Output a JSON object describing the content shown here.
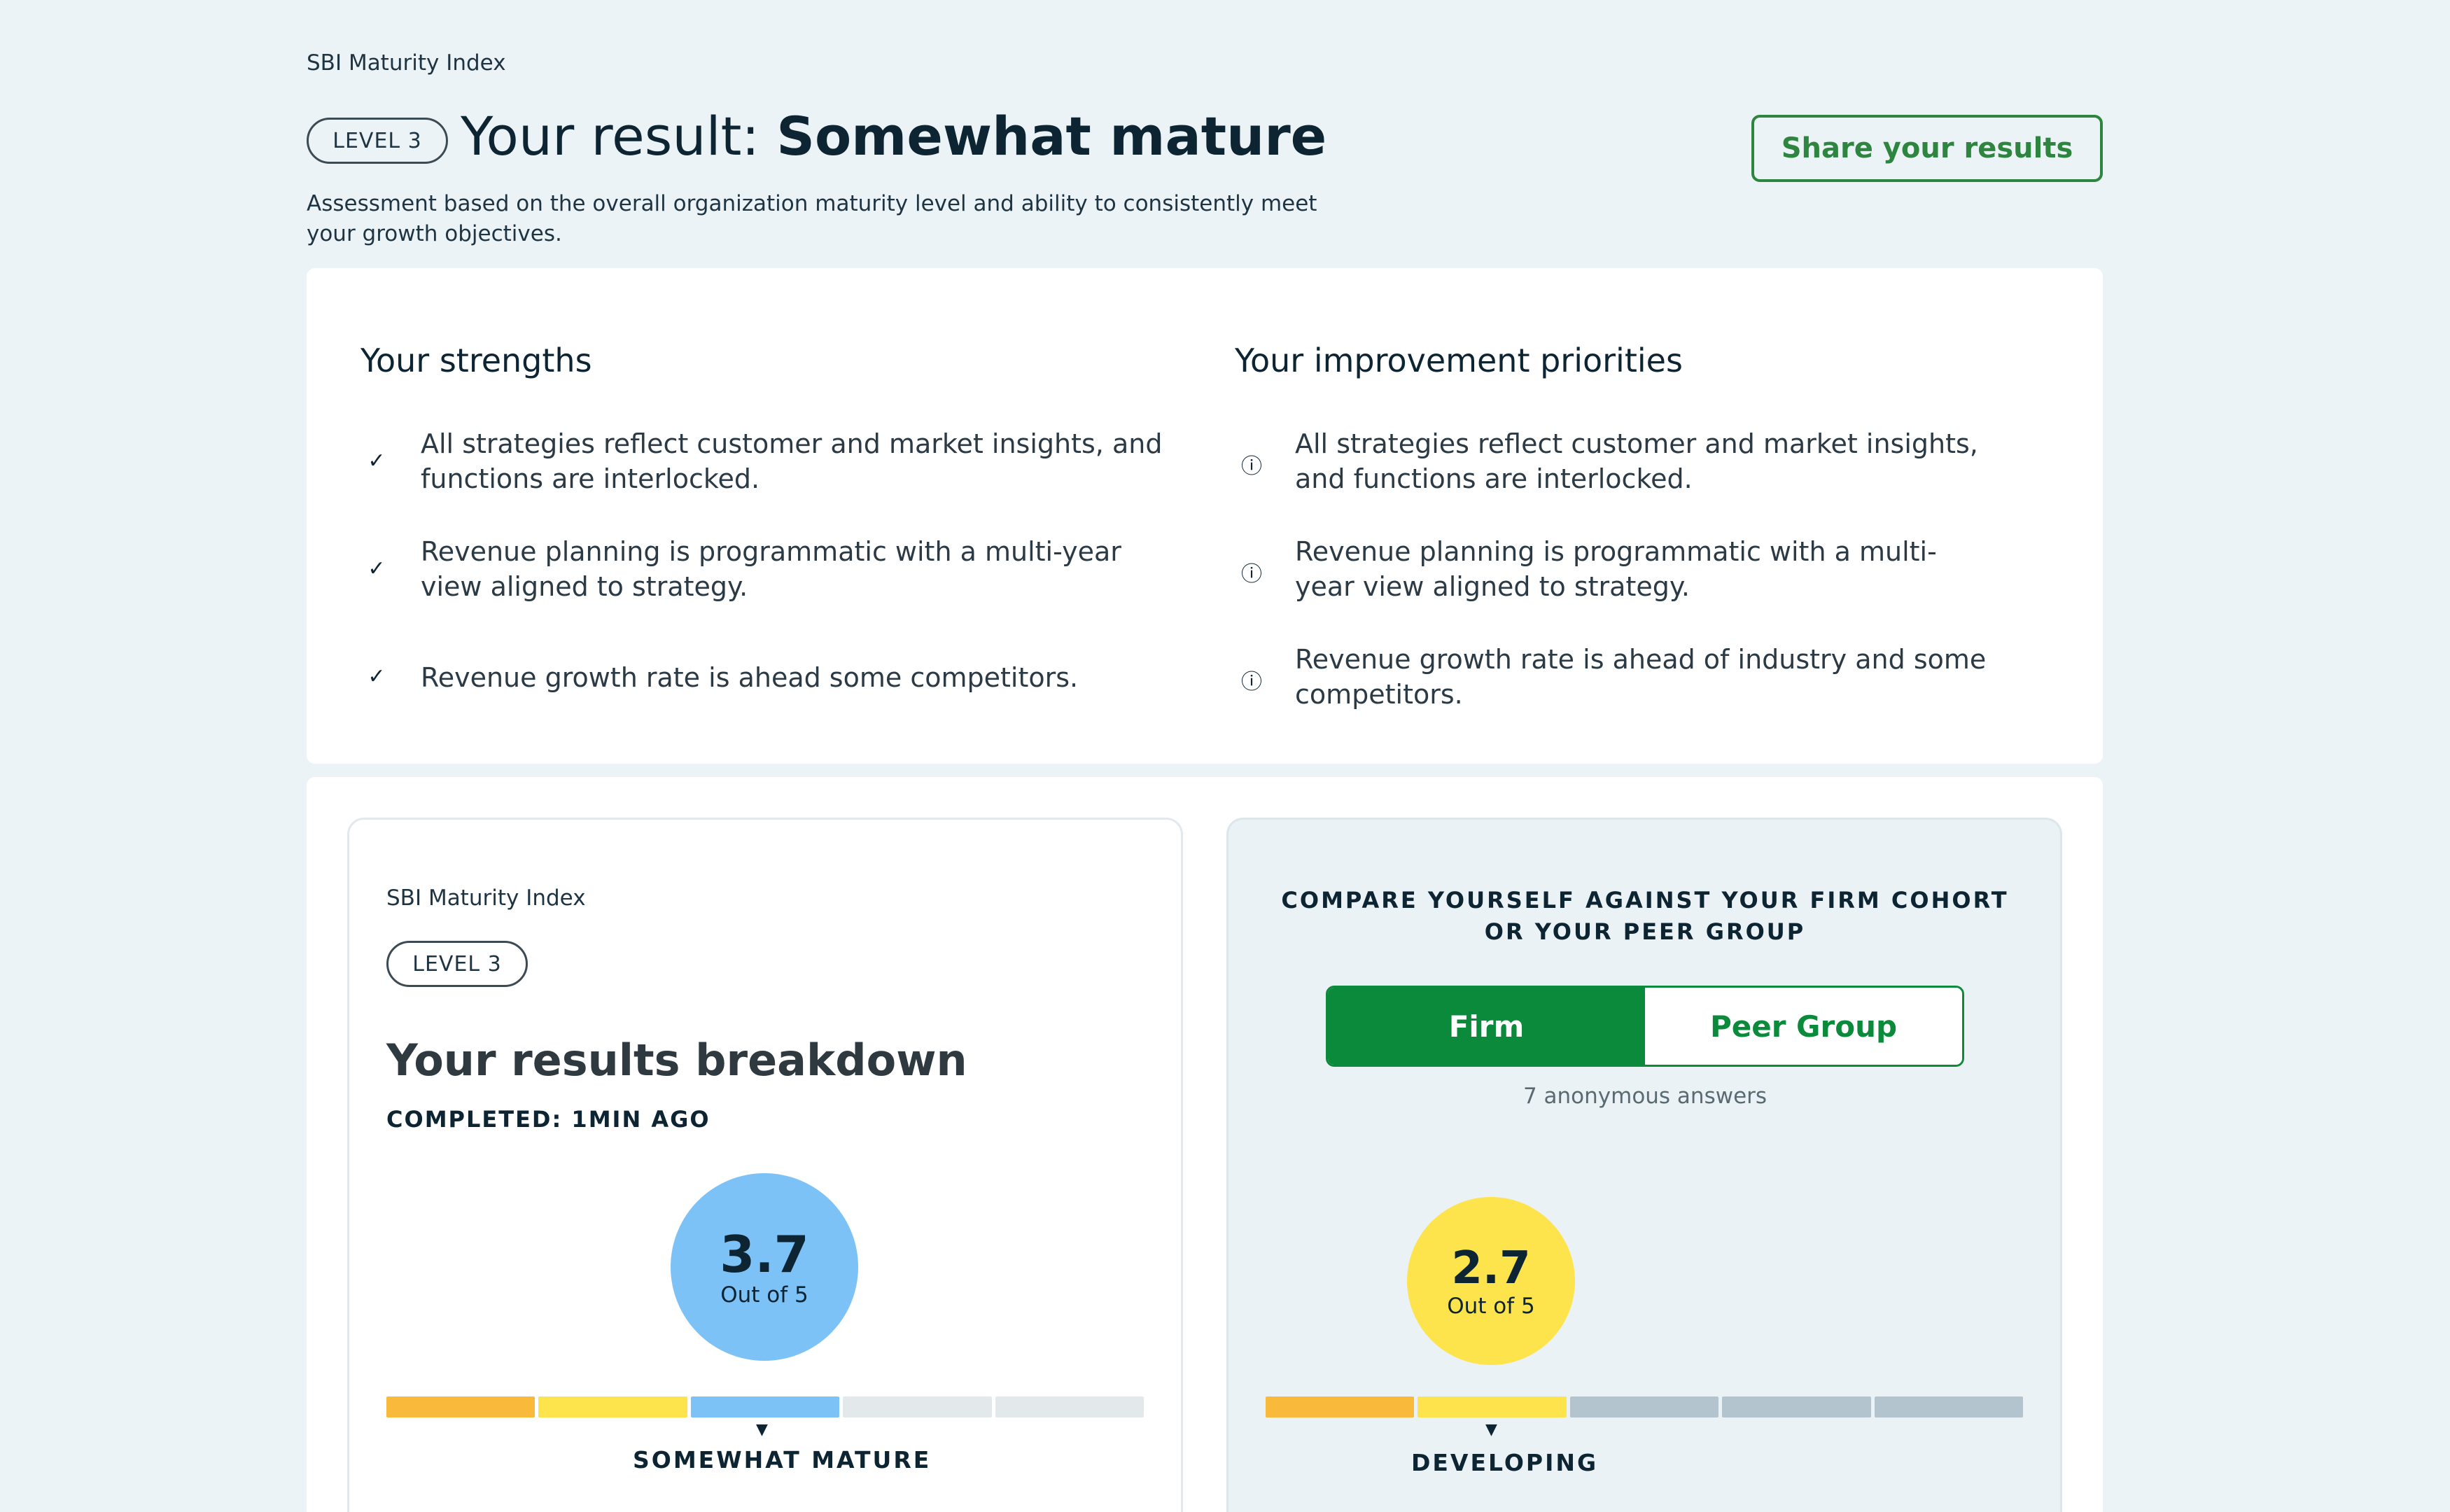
{
  "header": {
    "breadcrumb": "SBI Maturity Index",
    "level_badge": "LEVEL 3",
    "title_prefix": "Your result:",
    "level_name": "Somewhat mature",
    "description": "Assessment based on the overall organization maturity level and ability to consistently meet your growth objectives.",
    "share_button": "Share your results"
  },
  "strengths": {
    "title": "Your strengths",
    "icon": "double-check-icon",
    "items": [
      "All strategies reflect customer and market insights, and functions are interlocked.",
      "Revenue planning is programmatic with a multi-year view aligned to strategy.",
      "Revenue growth rate is ahead some competitors."
    ]
  },
  "improvements": {
    "title": "Your improvement priorities",
    "icon": "alert-circle-icon",
    "items": [
      "All strategies reflect customer and market insights, and functions are interlocked.",
      "Revenue planning is programmatic with a multi-year view aligned to strategy.",
      "Revenue growth rate is ahead of industry and some competitors."
    ]
  },
  "breakdown": {
    "breadcrumb": "SBI Maturity Index",
    "level_badge": "LEVEL 3",
    "title": "Your results breakdown",
    "completed": "COMPLETED: 1MIN AGO",
    "score": "3.7",
    "score_sub": "Out of 5",
    "score_level": 3,
    "level_label": "SOMEWHAT MATURE",
    "scale_colors": [
      "#f9b93b",
      "#fde34c",
      "#7dc2f7",
      "#e3e9eb",
      "#e3e9eb"
    ]
  },
  "compare": {
    "title": "COMPARE YOURSELF AGAINST YOUR FIRM COHORT OR YOUR PEER GROUP",
    "toggle": {
      "firm": "Firm",
      "peer": "Peer Group",
      "selected": "Firm"
    },
    "answers": "7 anonymous answers",
    "score": "2.7",
    "score_sub": "Out of 5",
    "score_level": 2,
    "level_label": "DEVELOPING",
    "scale_colors": [
      "#f9b93b",
      "#fde34c",
      "#b4c4ce",
      "#b4c4ce",
      "#b4c4ce"
    ]
  }
}
